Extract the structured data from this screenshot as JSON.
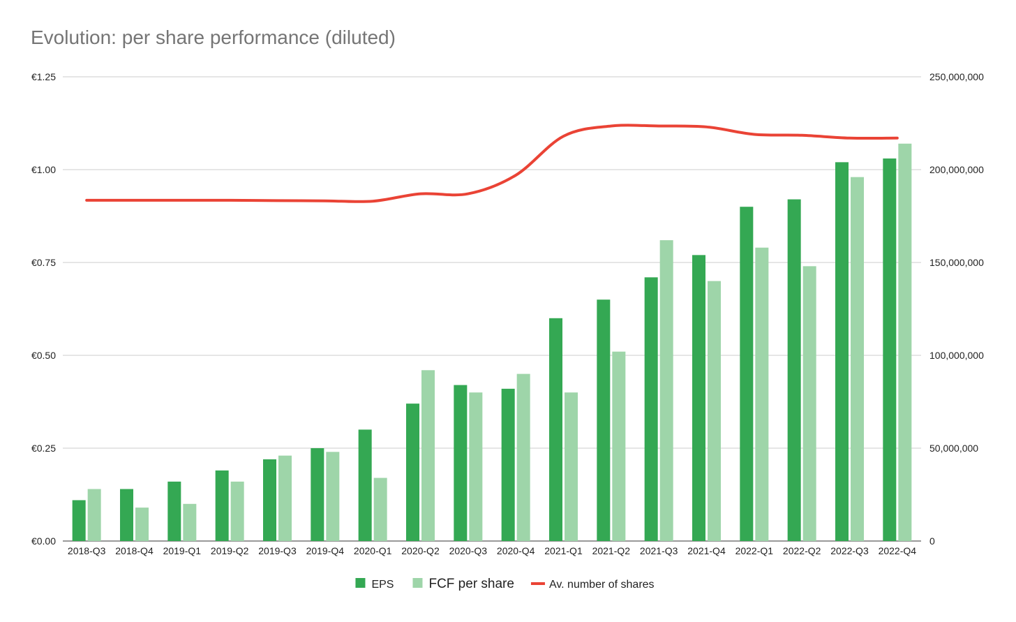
{
  "chart_data": {
    "type": "bar",
    "title": "Evolution: per share performance (diluted)",
    "categories": [
      "2018-Q3",
      "2018-Q4",
      "2019-Q1",
      "2019-Q2",
      "2019-Q3",
      "2019-Q4",
      "2020-Q1",
      "2020-Q2",
      "2020-Q3",
      "2020-Q4",
      "2021-Q1",
      "2021-Q2",
      "2021-Q3",
      "2021-Q4",
      "2022-Q1",
      "2022-Q2",
      "2022-Q3",
      "2022-Q4"
    ],
    "series": [
      {
        "name": "EPS",
        "type": "bar",
        "axis": "left",
        "color": "#34a853",
        "values": [
          0.11,
          0.14,
          0.16,
          0.19,
          0.22,
          0.25,
          0.3,
          0.37,
          0.42,
          0.41,
          0.6,
          0.65,
          0.71,
          0.77,
          0.9,
          0.92,
          1.02,
          1.03
        ]
      },
      {
        "name": "FCF per share",
        "type": "bar",
        "axis": "left",
        "color": "#9ed5a9",
        "values": [
          0.14,
          0.09,
          0.1,
          0.16,
          0.23,
          0.24,
          0.17,
          0.46,
          0.4,
          0.45,
          0.4,
          0.51,
          0.81,
          0.7,
          0.79,
          0.74,
          0.98,
          1.07
        ]
      },
      {
        "name": "Av. number of shares",
        "type": "line",
        "axis": "right",
        "color": "#ea4335",
        "values": [
          183500000,
          183500000,
          183500000,
          183500000,
          183300000,
          183200000,
          183000000,
          187000000,
          187000000,
          197000000,
          218000000,
          223500000,
          223500000,
          223000000,
          219000000,
          218500000,
          217000000,
          217000000
        ]
      }
    ],
    "y_left": {
      "min": 0,
      "max": 1.25,
      "ticks": [
        "€0.00",
        "€0.25",
        "€0.50",
        "€0.75",
        "€1.00",
        "€1.25"
      ]
    },
    "y_right": {
      "min": 0,
      "max": 250000000,
      "ticks": [
        "0",
        "50,000,000",
        "100,000,000",
        "150,000,000",
        "200,000,000",
        "250,000,000"
      ]
    },
    "grid": true,
    "legend": "bottom"
  }
}
